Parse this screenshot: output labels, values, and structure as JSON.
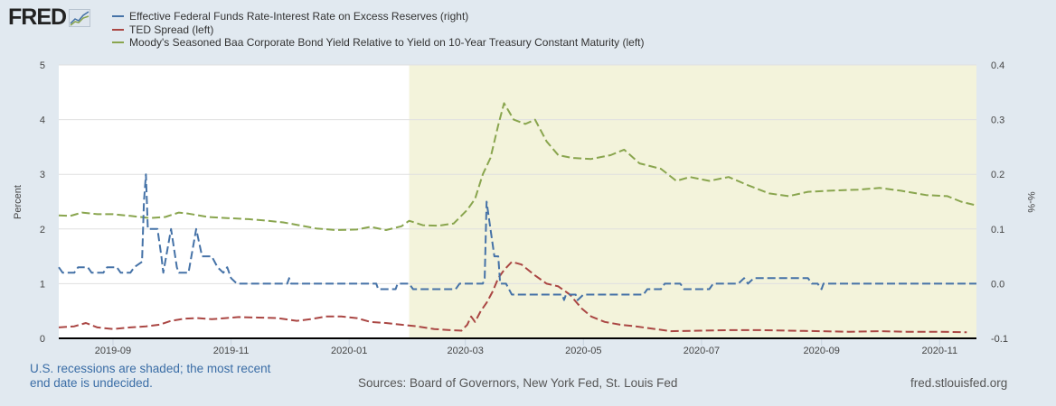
{
  "logo": {
    "text": "FRED",
    "icon": "fred-chart-icon"
  },
  "footer": {
    "recession_note_line1": "U.S. recessions are shaded; the most recent",
    "recession_note_line2": "end date is undecided.",
    "sources": "Sources: Board of Governors, New York Fed, St. Louis Fed",
    "url": "fred.stlouisfed.org"
  },
  "colors": {
    "background": "#e1e9f0",
    "plot_background": "#ffffff",
    "recession_shade": "#f3f3db",
    "gridline": "#e0e0e0",
    "blue": "#4572a7",
    "red": "#aa4643",
    "green": "#89a54e"
  },
  "chart_data": {
    "type": "line",
    "title": "",
    "xlabel": "",
    "ylabel_left": "Percent",
    "ylabel_right": "%-%",
    "ylim_left": [
      0,
      5
    ],
    "ylim_right": [
      -0.1,
      0.4
    ],
    "yticks_left": [
      "0",
      "1",
      "2",
      "3",
      "4",
      "5"
    ],
    "yticks_right": [
      "-0.1",
      "0.0",
      "0.1",
      "0.2",
      "0.3",
      "0.4"
    ],
    "xlim": [
      "2019-08-04",
      "2020-11-20"
    ],
    "xticks": [
      "2019-09",
      "2019-11",
      "2020-01",
      "2020-03",
      "2020-05",
      "2020-07",
      "2020-09",
      "2020-11"
    ],
    "grid": true,
    "legend_position": "top",
    "recession_shading": {
      "start": "2020-02-01",
      "end": "2020-11-20"
    },
    "series": [
      {
        "name": "Effective Federal Funds Rate-Interest Rate on Excess Reserves (right)",
        "axis": "right",
        "color": "#4572a7",
        "points": [
          [
            "2019-08-04",
            0.03
          ],
          [
            "2019-08-06",
            0.02
          ],
          [
            "2019-08-12",
            0.02
          ],
          [
            "2019-08-14",
            0.03
          ],
          [
            "2019-08-19",
            0.03
          ],
          [
            "2019-08-21",
            0.02
          ],
          [
            "2019-08-27",
            0.02
          ],
          [
            "2019-08-29",
            0.03
          ],
          [
            "2019-09-03",
            0.03
          ],
          [
            "2019-09-05",
            0.02
          ],
          [
            "2019-09-10",
            0.02
          ],
          [
            "2019-09-12",
            0.03
          ],
          [
            "2019-09-16",
            0.04
          ],
          [
            "2019-09-17",
            0.15
          ],
          [
            "2019-09-18",
            0.2
          ],
          [
            "2019-09-19",
            0.1
          ],
          [
            "2019-09-24",
            0.1
          ],
          [
            "2019-09-26",
            0.05
          ],
          [
            "2019-09-27",
            0.02
          ],
          [
            "2019-10-01",
            0.1
          ],
          [
            "2019-10-04",
            0.03
          ],
          [
            "2019-10-05",
            0.02
          ],
          [
            "2019-10-10",
            0.02
          ],
          [
            "2019-10-14",
            0.1
          ],
          [
            "2019-10-17",
            0.05
          ],
          [
            "2019-10-22",
            0.05
          ],
          [
            "2019-10-25",
            0.03
          ],
          [
            "2019-10-28",
            0.02
          ],
          [
            "2019-10-30",
            0.03
          ],
          [
            "2019-11-01",
            0.01
          ],
          [
            "2019-11-04",
            0.0
          ],
          [
            "2019-11-30",
            0.0
          ],
          [
            "2019-12-01",
            0.01
          ],
          [
            "2019-12-02",
            0.0
          ],
          [
            "2019-12-31",
            0.0
          ],
          [
            "2020-01-15",
            0.0
          ],
          [
            "2020-01-16",
            -0.01
          ],
          [
            "2020-01-25",
            -0.01
          ],
          [
            "2020-01-26",
            0.0
          ],
          [
            "2020-02-01",
            0.0
          ],
          [
            "2020-02-03",
            -0.01
          ],
          [
            "2020-02-25",
            -0.01
          ],
          [
            "2020-02-27",
            0.0
          ],
          [
            "2020-03-10",
            0.0
          ],
          [
            "2020-03-11",
            0.01
          ],
          [
            "2020-03-12",
            0.15
          ],
          [
            "2020-03-16",
            0.05
          ],
          [
            "2020-03-18",
            0.05
          ],
          [
            "2020-03-19",
            0.0
          ],
          [
            "2020-03-22",
            0.0
          ],
          [
            "2020-03-25",
            -0.02
          ],
          [
            "2020-04-20",
            -0.02
          ],
          [
            "2020-04-21",
            -0.03
          ],
          [
            "2020-04-22",
            -0.02
          ],
          [
            "2020-04-27",
            -0.02
          ],
          [
            "2020-04-28",
            -0.03
          ],
          [
            "2020-05-01",
            -0.02
          ],
          [
            "2020-06-01",
            -0.02
          ],
          [
            "2020-06-03",
            -0.01
          ],
          [
            "2020-06-10",
            -0.01
          ],
          [
            "2020-06-12",
            0.0
          ],
          [
            "2020-06-20",
            0.0
          ],
          [
            "2020-06-22",
            -0.01
          ],
          [
            "2020-07-05",
            -0.01
          ],
          [
            "2020-07-07",
            0.0
          ],
          [
            "2020-07-20",
            0.0
          ],
          [
            "2020-07-23",
            0.01
          ],
          [
            "2020-07-25",
            0.0
          ],
          [
            "2020-07-28",
            0.01
          ],
          [
            "2020-08-25",
            0.01
          ],
          [
            "2020-08-27",
            0.0
          ],
          [
            "2020-08-30",
            0.0
          ],
          [
            "2020-09-01",
            -0.01
          ],
          [
            "2020-09-02",
            0.0
          ],
          [
            "2020-11-20",
            0.0
          ]
        ]
      },
      {
        "name": "TED Spread (left)",
        "axis": "left",
        "color": "#aa4643",
        "points": [
          [
            "2019-08-04",
            0.2
          ],
          [
            "2019-08-12",
            0.22
          ],
          [
            "2019-08-18",
            0.28
          ],
          [
            "2019-08-24",
            0.2
          ],
          [
            "2019-09-01",
            0.17
          ],
          [
            "2019-09-10",
            0.2
          ],
          [
            "2019-09-18",
            0.22
          ],
          [
            "2019-09-25",
            0.25
          ],
          [
            "2019-10-01",
            0.32
          ],
          [
            "2019-10-08",
            0.36
          ],
          [
            "2019-10-15",
            0.37
          ],
          [
            "2019-10-22",
            0.35
          ],
          [
            "2019-10-29",
            0.37
          ],
          [
            "2019-11-05",
            0.39
          ],
          [
            "2019-11-15",
            0.38
          ],
          [
            "2019-11-25",
            0.37
          ],
          [
            "2019-12-05",
            0.32
          ],
          [
            "2019-12-12",
            0.35
          ],
          [
            "2019-12-20",
            0.4
          ],
          [
            "2019-12-28",
            0.4
          ],
          [
            "2020-01-05",
            0.37
          ],
          [
            "2020-01-12",
            0.3
          ],
          [
            "2020-01-20",
            0.28
          ],
          [
            "2020-01-28",
            0.25
          ],
          [
            "2020-02-05",
            0.22
          ],
          [
            "2020-02-14",
            0.17
          ],
          [
            "2020-02-22",
            0.15
          ],
          [
            "2020-02-28",
            0.14
          ],
          [
            "2020-03-02",
            0.25
          ],
          [
            "2020-03-04",
            0.4
          ],
          [
            "2020-03-06",
            0.3
          ],
          [
            "2020-03-09",
            0.5
          ],
          [
            "2020-03-12",
            0.65
          ],
          [
            "2020-03-15",
            0.85
          ],
          [
            "2020-03-18",
            1.1
          ],
          [
            "2020-03-21",
            1.25
          ],
          [
            "2020-03-25",
            1.4
          ],
          [
            "2020-03-30",
            1.35
          ],
          [
            "2020-04-06",
            1.15
          ],
          [
            "2020-04-12",
            1.0
          ],
          [
            "2020-04-18",
            0.95
          ],
          [
            "2020-04-24",
            0.8
          ],
          [
            "2020-04-30",
            0.55
          ],
          [
            "2020-05-05",
            0.4
          ],
          [
            "2020-05-12",
            0.3
          ],
          [
            "2020-05-20",
            0.25
          ],
          [
            "2020-05-28",
            0.22
          ],
          [
            "2020-06-05",
            0.18
          ],
          [
            "2020-06-15",
            0.13
          ],
          [
            "2020-06-30",
            0.14
          ],
          [
            "2020-07-15",
            0.15
          ],
          [
            "2020-08-01",
            0.15
          ],
          [
            "2020-08-15",
            0.14
          ],
          [
            "2020-09-01",
            0.13
          ],
          [
            "2020-09-15",
            0.12
          ],
          [
            "2020-10-01",
            0.13
          ],
          [
            "2020-10-15",
            0.12
          ],
          [
            "2020-11-01",
            0.12
          ],
          [
            "2020-11-15",
            0.11
          ]
        ]
      },
      {
        "name": "Moody's Seasoned Baa Corporate Bond Yield Relative to Yield on 10-Year Treasury Constant Maturity (left)",
        "axis": "left",
        "color": "#89a54e",
        "points": [
          [
            "2019-08-04",
            2.25
          ],
          [
            "2019-08-10",
            2.24
          ],
          [
            "2019-08-16",
            2.3
          ],
          [
            "2019-08-24",
            2.27
          ],
          [
            "2019-09-01",
            2.27
          ],
          [
            "2019-09-10",
            2.24
          ],
          [
            "2019-09-20",
            2.2
          ],
          [
            "2019-09-28",
            2.22
          ],
          [
            "2019-10-05",
            2.3
          ],
          [
            "2019-10-10",
            2.28
          ],
          [
            "2019-10-20",
            2.22
          ],
          [
            "2019-10-30",
            2.2
          ],
          [
            "2019-11-10",
            2.18
          ],
          [
            "2019-11-20",
            2.15
          ],
          [
            "2019-11-28",
            2.12
          ],
          [
            "2019-12-06",
            2.07
          ],
          [
            "2019-12-15",
            2.01
          ],
          [
            "2019-12-25",
            1.98
          ],
          [
            "2020-01-05",
            1.99
          ],
          [
            "2020-01-12",
            2.04
          ],
          [
            "2020-01-20",
            1.98
          ],
          [
            "2020-01-28",
            2.05
          ],
          [
            "2020-02-01",
            2.15
          ],
          [
            "2020-02-08",
            2.07
          ],
          [
            "2020-02-16",
            2.06
          ],
          [
            "2020-02-24",
            2.1
          ],
          [
            "2020-03-02",
            2.35
          ],
          [
            "2020-03-06",
            2.55
          ],
          [
            "2020-03-10",
            3.0
          ],
          [
            "2020-03-14",
            3.3
          ],
          [
            "2020-03-18",
            3.9
          ],
          [
            "2020-03-21",
            4.3
          ],
          [
            "2020-03-26",
            4.0
          ],
          [
            "2020-04-01",
            3.92
          ],
          [
            "2020-04-06",
            4.0
          ],
          [
            "2020-04-12",
            3.6
          ],
          [
            "2020-04-18",
            3.35
          ],
          [
            "2020-04-25",
            3.3
          ],
          [
            "2020-05-05",
            3.28
          ],
          [
            "2020-05-15",
            3.35
          ],
          [
            "2020-05-22",
            3.45
          ],
          [
            "2020-05-30",
            3.2
          ],
          [
            "2020-06-10",
            3.1
          ],
          [
            "2020-06-18",
            2.88
          ],
          [
            "2020-06-25",
            2.95
          ],
          [
            "2020-07-05",
            2.88
          ],
          [
            "2020-07-15",
            2.95
          ],
          [
            "2020-07-25",
            2.8
          ],
          [
            "2020-08-05",
            2.65
          ],
          [
            "2020-08-15",
            2.6
          ],
          [
            "2020-08-25",
            2.68
          ],
          [
            "2020-09-05",
            2.7
          ],
          [
            "2020-09-20",
            2.72
          ],
          [
            "2020-10-01",
            2.75
          ],
          [
            "2020-10-12",
            2.7
          ],
          [
            "2020-10-25",
            2.62
          ],
          [
            "2020-11-05",
            2.6
          ],
          [
            "2020-11-12",
            2.5
          ],
          [
            "2020-11-20",
            2.43
          ]
        ]
      }
    ]
  }
}
